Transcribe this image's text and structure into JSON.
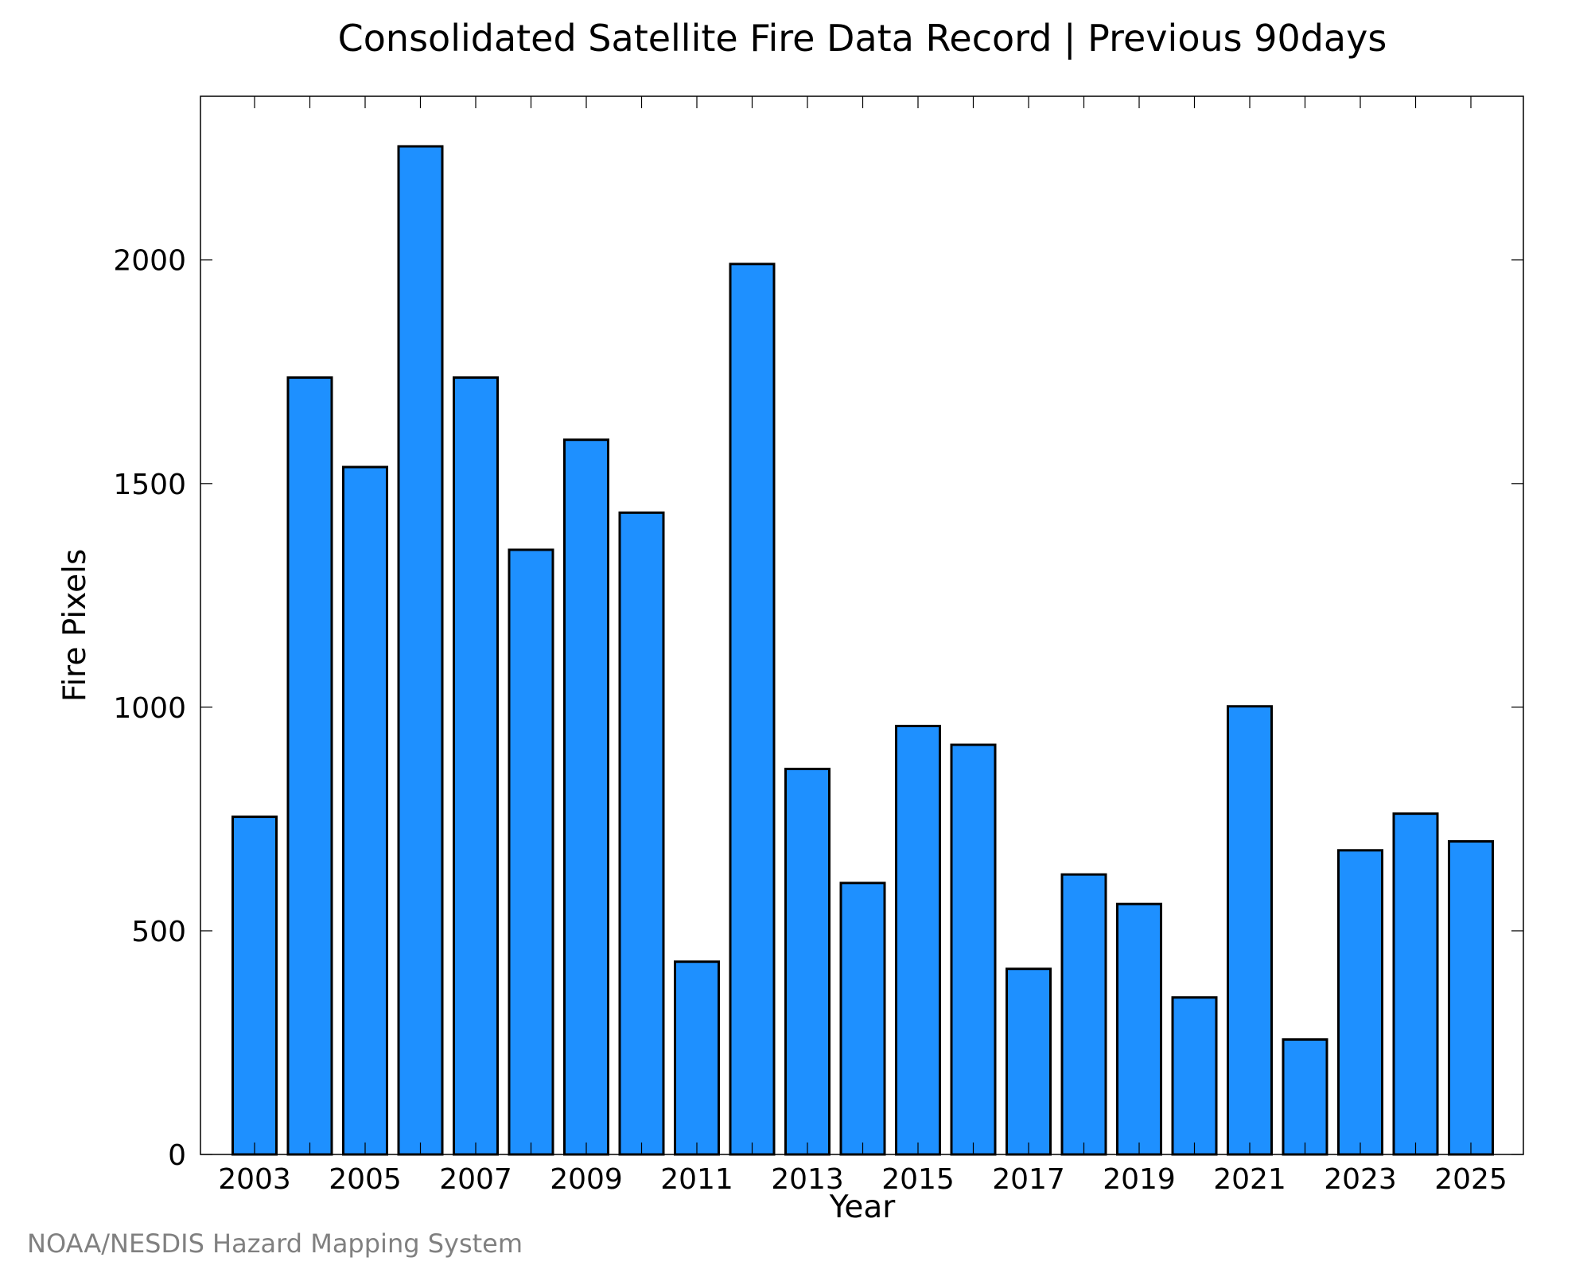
{
  "chart_data": {
    "type": "bar",
    "title": "Consolidated Satellite Fire Data Record | Previous 90days",
    "xlabel": "Year",
    "ylabel": "Fire Pixels",
    "categories": [
      "2003",
      "2004",
      "2005",
      "2006",
      "2007",
      "2008",
      "2009",
      "2010",
      "2011",
      "2012",
      "2013",
      "2014",
      "2015",
      "2016",
      "2017",
      "2018",
      "2019",
      "2020",
      "2021",
      "2022",
      "2023",
      "2024",
      "2025"
    ],
    "values": [
      755,
      1737,
      1537,
      2254,
      1737,
      1352,
      1598,
      1435,
      431,
      1991,
      862,
      607,
      958,
      916,
      415,
      626,
      560,
      351,
      1002,
      257,
      680,
      762,
      700
    ],
    "x_tick_labels": [
      "2003",
      "2005",
      "2007",
      "2009",
      "2011",
      "2013",
      "2015",
      "2017",
      "2019",
      "2021",
      "2023",
      "2025"
    ],
    "y_ticks": [
      0,
      500,
      1000,
      1500,
      2000
    ],
    "ylim": [
      0,
      2366
    ],
    "grid": false,
    "bar_color": "#1e90ff",
    "edge_color": "#000000"
  },
  "credit": "NOAA/NESDIS Hazard Mapping System"
}
